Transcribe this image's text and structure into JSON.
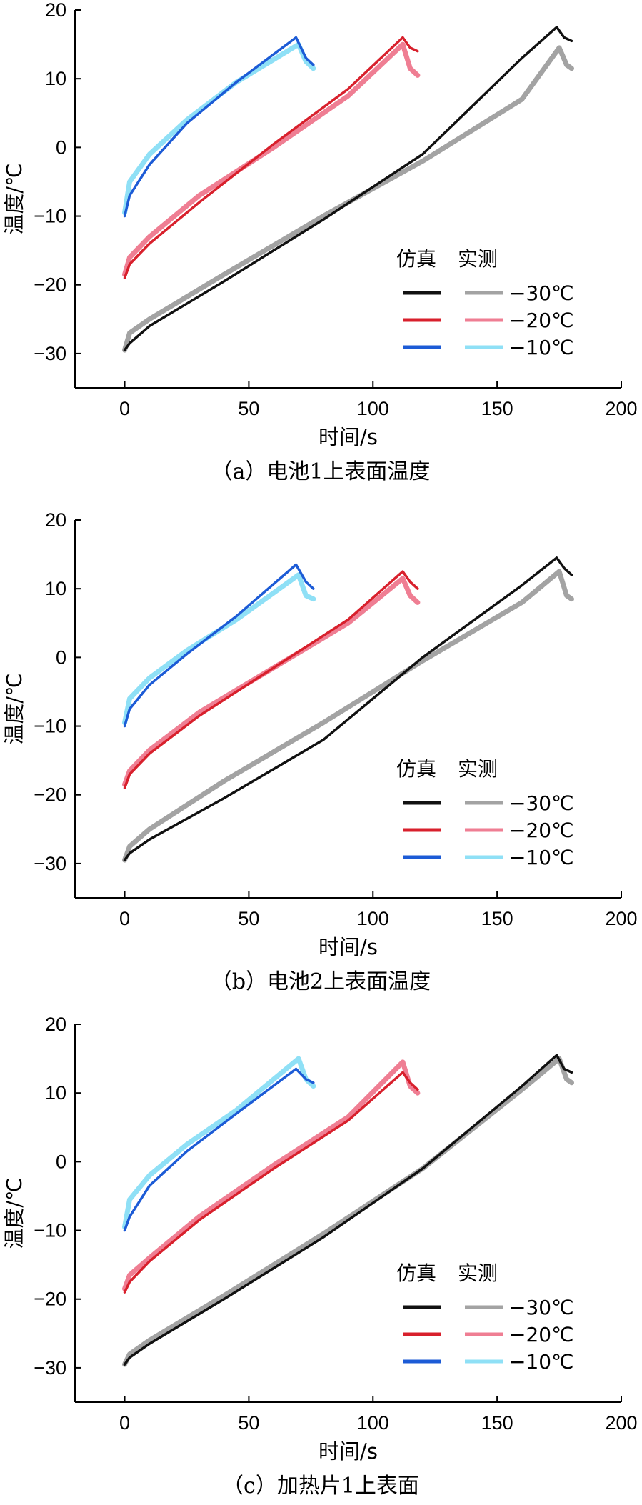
{
  "legend_headers": {
    "sim": "仿真",
    "meas": "实测"
  },
  "colors": {
    "-30": {
      "sim": "#111111",
      "meas": "#a3a3a3"
    },
    "-20": {
      "sim": "#d8202c",
      "meas": "#ef7e93"
    },
    "-10": {
      "sim": "#1c5bd6",
      "meas": "#8fe0f6"
    }
  },
  "chart_data": [
    {
      "type": "line",
      "caption": "（a）电池1上表面温度",
      "xlabel": "时间/s",
      "ylabel": "温度/℃",
      "xlim": [
        -20,
        200
      ],
      "ylim": [
        -35,
        20
      ],
      "xticks": [
        0,
        50,
        100,
        150,
        200
      ],
      "yticks": [
        -30,
        -20,
        -10,
        0,
        10,
        20
      ],
      "legend": "right",
      "series": [
        {
          "name": "-30℃",
          "kind": "meas",
          "group": "-30",
          "x": [
            0,
            2,
            10,
            40,
            80,
            120,
            160,
            175,
            178,
            180
          ],
          "y": [
            -29.5,
            -27,
            -25,
            -18.5,
            -10,
            -2,
            7,
            14.5,
            12,
            11.5
          ]
        },
        {
          "name": "-30℃",
          "kind": "sim",
          "group": "-30",
          "x": [
            0,
            2,
            10,
            40,
            80,
            120,
            160,
            174,
            177,
            180
          ],
          "y": [
            -29.5,
            -28.5,
            -26,
            -19.5,
            -10.5,
            -1,
            13,
            17.5,
            16,
            15.5
          ]
        },
        {
          "name": "-20℃",
          "kind": "meas",
          "group": "-20",
          "x": [
            0,
            2,
            10,
            30,
            60,
            90,
            112,
            115,
            118
          ],
          "y": [
            -18.5,
            -16,
            -13,
            -7,
            0,
            7.5,
            15,
            11.5,
            10.5
          ]
        },
        {
          "name": "-20℃",
          "kind": "sim",
          "group": "-20",
          "x": [
            0,
            2,
            10,
            30,
            60,
            90,
            112,
            115,
            118
          ],
          "y": [
            -19,
            -17,
            -14,
            -8,
            0.5,
            8.5,
            16,
            14.5,
            14
          ]
        },
        {
          "name": "-10℃",
          "kind": "meas",
          "group": "-10",
          "x": [
            0,
            2,
            10,
            25,
            45,
            70,
            73,
            76
          ],
          "y": [
            -9.5,
            -5,
            -1,
            4,
            9.5,
            15,
            12.5,
            11.5
          ]
        },
        {
          "name": "-10℃",
          "kind": "sim",
          "group": "-10",
          "x": [
            0,
            2,
            10,
            25,
            45,
            69,
            73,
            76
          ],
          "y": [
            -10,
            -7,
            -2.5,
            3.5,
            9.5,
            16,
            13,
            12
          ]
        }
      ]
    },
    {
      "type": "line",
      "caption": "（b）电池2上表面温度",
      "xlabel": "时间/s",
      "ylabel": "温度/℃",
      "xlim": [
        -20,
        200
      ],
      "ylim": [
        -35,
        20
      ],
      "xticks": [
        0,
        50,
        100,
        150,
        200
      ],
      "yticks": [
        -30,
        -20,
        -10,
        0,
        10,
        20
      ],
      "legend": "right",
      "series": [
        {
          "name": "-30℃",
          "kind": "meas",
          "group": "-30",
          "x": [
            0,
            2,
            10,
            40,
            80,
            120,
            160,
            175,
            178,
            180
          ],
          "y": [
            -29.5,
            -27.5,
            -25,
            -18,
            -9.5,
            -0.5,
            8,
            12.5,
            9,
            8.5
          ]
        },
        {
          "name": "-30℃",
          "kind": "sim",
          "group": "-30",
          "x": [
            0,
            2,
            10,
            40,
            80,
            120,
            160,
            174,
            177,
            180
          ],
          "y": [
            -29.5,
            -28.5,
            -26.5,
            -20.5,
            -12,
            0,
            10.5,
            14.5,
            13,
            12
          ]
        },
        {
          "name": "-20℃",
          "kind": "meas",
          "group": "-20",
          "x": [
            0,
            2,
            10,
            30,
            60,
            90,
            112,
            115,
            118
          ],
          "y": [
            -18.5,
            -16.5,
            -13.5,
            -8,
            -1.5,
            5,
            11.5,
            9,
            8
          ]
        },
        {
          "name": "-20℃",
          "kind": "sim",
          "group": "-20",
          "x": [
            0,
            2,
            10,
            30,
            60,
            90,
            112,
            115,
            118
          ],
          "y": [
            -19,
            -17,
            -14,
            -8.5,
            -1.5,
            5.5,
            12.5,
            11,
            10
          ]
        },
        {
          "name": "-10℃",
          "kind": "meas",
          "group": "-10",
          "x": [
            0,
            2,
            10,
            25,
            45,
            70,
            73,
            76
          ],
          "y": [
            -9.5,
            -6,
            -3,
            1,
            5.5,
            12,
            9,
            8.5
          ]
        },
        {
          "name": "-10℃",
          "kind": "sim",
          "group": "-10",
          "x": [
            0,
            2,
            10,
            25,
            45,
            69,
            73,
            76
          ],
          "y": [
            -10,
            -7.5,
            -4,
            0.5,
            6,
            13.5,
            11,
            10
          ]
        }
      ]
    },
    {
      "type": "line",
      "caption": "（c）加热片1上表面",
      "xlabel": "时间/s",
      "ylabel": "温度/℃",
      "xlim": [
        -20,
        200
      ],
      "ylim": [
        -35,
        20
      ],
      "xticks": [
        0,
        50,
        100,
        150,
        200
      ],
      "yticks": [
        -30,
        -20,
        -10,
        0,
        10,
        20
      ],
      "legend": "right",
      "series": [
        {
          "name": "-30℃",
          "kind": "meas",
          "group": "-30",
          "x": [
            0,
            2,
            10,
            40,
            80,
            120,
            160,
            175,
            178,
            180
          ],
          "y": [
            -29.5,
            -28,
            -26,
            -19.5,
            -10.5,
            -1,
            10.5,
            15,
            12,
            11.5
          ]
        },
        {
          "name": "-30℃",
          "kind": "sim",
          "group": "-30",
          "x": [
            0,
            2,
            10,
            40,
            80,
            120,
            160,
            174,
            177,
            180
          ],
          "y": [
            -29.5,
            -28.5,
            -26.5,
            -20,
            -11,
            -1,
            11,
            15.5,
            13.5,
            13
          ]
        },
        {
          "name": "-20℃",
          "kind": "meas",
          "group": "-20",
          "x": [
            0,
            2,
            10,
            30,
            60,
            90,
            112,
            115,
            118
          ],
          "y": [
            -18.5,
            -16.5,
            -14,
            -8,
            -0.5,
            6.5,
            14.5,
            11,
            10
          ]
        },
        {
          "name": "-20℃",
          "kind": "sim",
          "group": "-20",
          "x": [
            0,
            2,
            10,
            30,
            60,
            90,
            112,
            115,
            118
          ],
          "y": [
            -19,
            -17.5,
            -14.5,
            -8.5,
            -1,
            6,
            13,
            11.5,
            10.5
          ]
        },
        {
          "name": "-10℃",
          "kind": "meas",
          "group": "-10",
          "x": [
            0,
            2,
            10,
            25,
            45,
            70,
            73,
            76
          ],
          "y": [
            -9.5,
            -5.5,
            -2,
            2.5,
            7.5,
            15,
            12,
            11
          ]
        },
        {
          "name": "-10℃",
          "kind": "sim",
          "group": "-10",
          "x": [
            0,
            2,
            10,
            25,
            45,
            69,
            73,
            76
          ],
          "y": [
            -10,
            -8,
            -3.5,
            1.5,
            7,
            13.5,
            12,
            11.5
          ]
        }
      ]
    }
  ]
}
